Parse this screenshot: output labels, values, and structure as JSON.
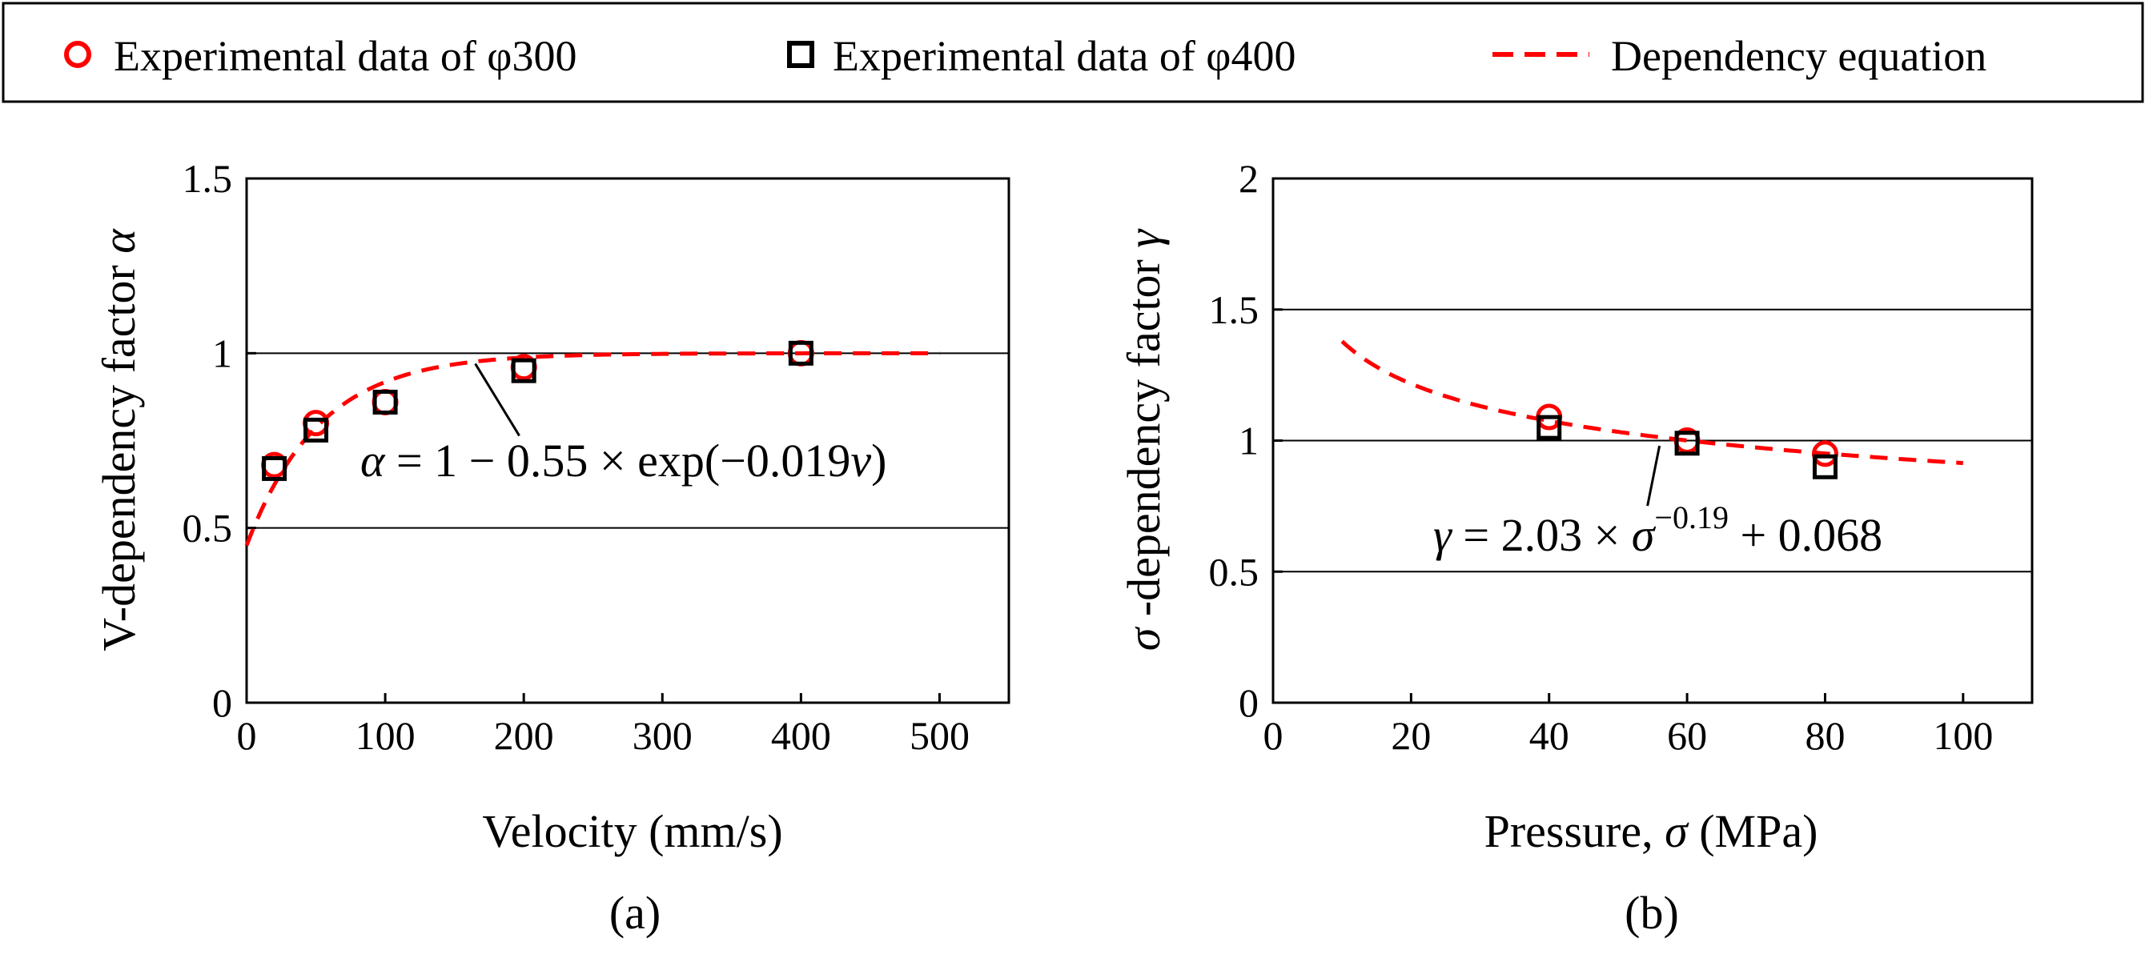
{
  "legend": {
    "items": [
      {
        "label": "Experimental data of φ300",
        "marker": "circle",
        "color": "#ff0000"
      },
      {
        "label": "Experimental data of φ400",
        "marker": "square",
        "color": "#000000"
      },
      {
        "label": "Dependency equation",
        "marker": "dashed-line",
        "color": "#ff0000"
      }
    ]
  },
  "chart_data": [
    {
      "type": "scatter",
      "panel_label": "(a)",
      "xlabel": "Velocity (mm/s)",
      "ylabel": {
        "main": "V-dependency factor ",
        "symbol": "α"
      },
      "xlim": [
        0,
        550
      ],
      "ylim": [
        0,
        1.5
      ],
      "xticks": [
        0,
        100,
        200,
        300,
        400,
        500
      ],
      "xtick_labels": [
        "0",
        "100",
        "200",
        "300",
        "400",
        "500"
      ],
      "yticks": [
        0,
        0.5,
        1,
        1.5
      ],
      "ytick_labels": [
        "0",
        "0.5",
        "1",
        "1.5"
      ],
      "gridlines_y": [
        0.5,
        1
      ],
      "series": [
        {
          "name": "Experimental data of φ300",
          "marker": "circle",
          "color": "#ff0000",
          "x": [
            20,
            50,
            100,
            200,
            400
          ],
          "y": [
            0.68,
            0.8,
            0.86,
            0.96,
            1.0
          ]
        },
        {
          "name": "Experimental data of φ400",
          "marker": "square",
          "color": "#000000",
          "x": [
            20,
            50,
            100,
            200,
            400
          ],
          "y": [
            0.67,
            0.78,
            0.86,
            0.95,
            1.0
          ]
        }
      ],
      "curve": {
        "name": "Dependency equation",
        "x_range": [
          0,
          500
        ],
        "a": 1,
        "b": 0.55,
        "c": 0.019
      },
      "annotation": {
        "pointer_x": 165,
        "pointer_y": 0.97,
        "parts": {
          "lhs": "α",
          "eq": " = 1 − 0.55 × exp(−0.019",
          "var": "v",
          "tail": ")"
        }
      }
    },
    {
      "type": "scatter",
      "panel_label": "(b)",
      "xlabel": {
        "main": "Pressure, ",
        "symbol": "σ",
        "tail": " (MPa)"
      },
      "ylabel": {
        "symbol": "σ",
        "main": " -dependency factor ",
        "symbol2": "γ"
      },
      "xlim": [
        0,
        110
      ],
      "ylim": [
        0,
        2
      ],
      "xticks": [
        0,
        20,
        40,
        60,
        80,
        100
      ],
      "xtick_labels": [
        "0",
        "20",
        "40",
        "60",
        "80",
        "100"
      ],
      "yticks": [
        0,
        0.5,
        1,
        1.5,
        2
      ],
      "ytick_labels": [
        "0",
        "0.5",
        "1",
        "1.5",
        "2"
      ],
      "gridlines_y": [
        0.5,
        1,
        1.5
      ],
      "series": [
        {
          "name": "Experimental data of φ300",
          "marker": "circle",
          "color": "#ff0000",
          "x": [
            40,
            60,
            80
          ],
          "y": [
            1.09,
            1.0,
            0.95
          ]
        },
        {
          "name": "Experimental data of φ400",
          "marker": "square",
          "color": "#000000",
          "x": [
            40,
            60,
            80
          ],
          "y": [
            1.05,
            0.99,
            0.9
          ]
        }
      ],
      "curve": {
        "name": "Dependency equation",
        "x_range": [
          10,
          100
        ],
        "a": 2.03,
        "p": -0.19,
        "c": 0.068
      },
      "annotation": {
        "pointer_x": 56,
        "pointer_y": 0.98,
        "parts": {
          "lhs": "γ",
          "eq": " = 2.03 × ",
          "var": "σ",
          "exp": "−0.19",
          "tail": " + 0.068"
        }
      }
    }
  ]
}
